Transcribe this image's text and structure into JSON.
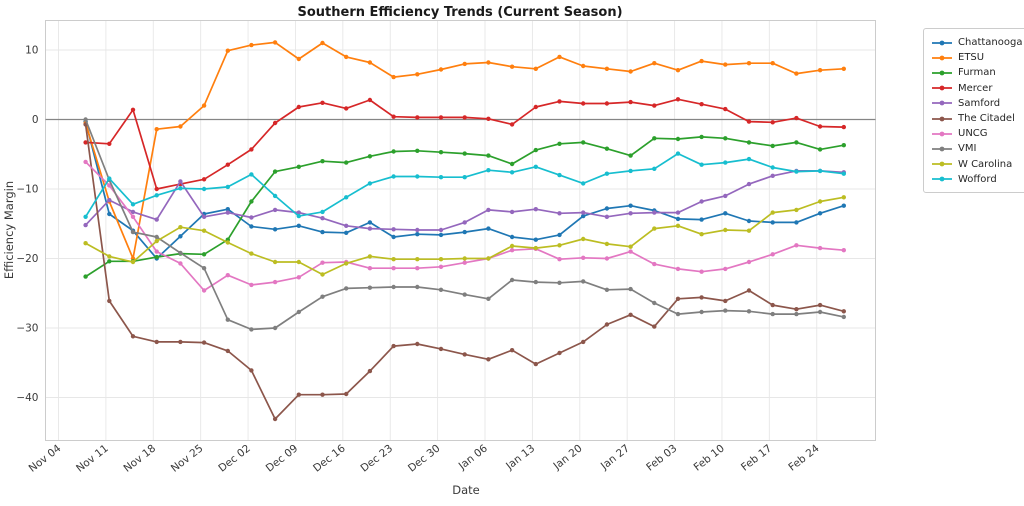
{
  "title": "Southern Efficiency Trends (Current Season)",
  "chart_data": {
    "type": "line",
    "title": "Southern Efficiency Trends (Current Season)",
    "xlabel": "Date",
    "ylabel": "Efficiency Margin",
    "grid": true,
    "zero_line": true,
    "legend_position": "outside-right",
    "ylim": [
      -46,
      14.3
    ],
    "y_ticks": [
      10,
      0,
      -10,
      -20,
      -30,
      -40
    ],
    "y_tick_labels": [
      "10",
      "0",
      "−10",
      "−20",
      "−30",
      "−40"
    ],
    "x_tick_labels": [
      "Nov 04",
      "Nov 11",
      "Nov 18",
      "Nov 25",
      "Dec 02",
      "Dec 09",
      "Dec 16",
      "Dec 23",
      "Dec 30",
      "Jan 06",
      "Jan 13",
      "Jan 20",
      "Jan 27",
      "Feb 03",
      "Feb 10",
      "Feb 17",
      "Feb 24"
    ],
    "x_tick_days": [
      0,
      7,
      14,
      21,
      28,
      35,
      42,
      49,
      56,
      63,
      70,
      77,
      84,
      91,
      98,
      105,
      112
    ],
    "x_start_day": 4,
    "x_interval_days": 3.5,
    "series": [
      {
        "name": "Chattanooga",
        "color": "#1f77b4",
        "values": [
          -0.3,
          -13.6,
          -16.0,
          -20.0,
          -16.8,
          -13.6,
          -12.9,
          -15.4,
          -15.8,
          -15.3,
          -16.2,
          -16.3,
          -14.8,
          -16.9,
          -16.5,
          -16.6,
          -16.2,
          -15.7,
          -16.9,
          -17.3,
          -16.6,
          -13.9,
          -12.8,
          -12.4,
          -13.1,
          -14.3,
          -14.4,
          -13.5,
          -14.6,
          -14.8,
          -14.8,
          -13.5,
          -12.4
        ]
      },
      {
        "name": "ETSU",
        "color": "#ff7f0e",
        "values": [
          -0.5,
          -11.8,
          -20.0,
          -1.4,
          -1.0,
          2.0,
          9.9,
          10.7,
          11.1,
          8.7,
          11.0,
          9.0,
          8.2,
          6.1,
          6.5,
          7.2,
          8.0,
          8.2,
          7.6,
          7.3,
          9.0,
          7.7,
          7.3,
          6.9,
          8.1,
          7.1,
          8.4,
          7.9,
          8.1,
          8.1,
          6.6,
          7.1,
          7.3
        ]
      },
      {
        "name": "Furman",
        "color": "#2ca02c",
        "values": [
          -22.6,
          -20.4,
          -20.4,
          -19.8,
          -19.3,
          -19.4,
          -17.3,
          -11.8,
          -7.5,
          -6.8,
          -6.0,
          -6.2,
          -5.3,
          -4.6,
          -4.5,
          -4.7,
          -4.9,
          -5.2,
          -6.4,
          -4.4,
          -3.5,
          -3.3,
          -4.2,
          -5.2,
          -2.7,
          -2.8,
          -2.5,
          -2.7,
          -3.3,
          -3.8,
          -3.3,
          -4.3,
          -3.7
        ]
      },
      {
        "name": "Mercer",
        "color": "#d62728",
        "values": [
          -3.3,
          -3.5,
          1.4,
          -10.0,
          -9.3,
          -8.6,
          -6.5,
          -4.3,
          -0.5,
          1.8,
          2.4,
          1.6,
          2.8,
          0.4,
          0.3,
          0.3,
          0.3,
          0.1,
          -0.7,
          1.8,
          2.6,
          2.3,
          2.3,
          2.5,
          2.0,
          2.9,
          2.2,
          1.5,
          -0.3,
          -0.4,
          0.2,
          -1.0,
          -1.1
        ]
      },
      {
        "name": "Samford",
        "color": "#9467bd",
        "values": [
          -15.2,
          -11.6,
          -13.3,
          -14.4,
          -8.9,
          -14.0,
          -13.4,
          -14.1,
          -13.0,
          -13.4,
          -14.2,
          -15.3,
          -15.7,
          -15.8,
          -15.9,
          -15.9,
          -14.8,
          -13.0,
          -13.3,
          -12.9,
          -13.5,
          -13.4,
          -14.0,
          -13.5,
          -13.4,
          -13.4,
          -11.8,
          -11.0,
          -9.3,
          -8.1,
          -7.4,
          -7.4,
          -7.6
        ]
      },
      {
        "name": "The Citadel",
        "color": "#8c564b",
        "values": [
          -0.7,
          -26.1,
          -31.2,
          -32.0,
          -32.0,
          -32.1,
          -33.3,
          -36.1,
          -43.1,
          -39.6,
          -39.6,
          -39.5,
          -36.2,
          -32.6,
          -32.3,
          -33.0,
          -33.8,
          -34.5,
          -33.2,
          -35.2,
          -33.6,
          -32.0,
          -29.5,
          -28.1,
          -29.8,
          -25.8,
          -25.6,
          -26.1,
          -24.6,
          -26.7,
          -27.3,
          -26.7,
          -27.6
        ]
      },
      {
        "name": "UNCG",
        "color": "#e377c2",
        "values": [
          -6.1,
          -9.5,
          -14.0,
          -19.0,
          -20.7,
          -24.6,
          -22.4,
          -23.8,
          -23.4,
          -22.7,
          -20.6,
          -20.5,
          -21.4,
          -21.4,
          -21.4,
          -21.2,
          -20.6,
          -20.0,
          -18.8,
          -18.6,
          -20.1,
          -19.9,
          -20.0,
          -19.0,
          -20.8,
          -21.5,
          -21.9,
          -21.5,
          -20.5,
          -19.4,
          -18.1,
          -18.5,
          -18.8
        ]
      },
      {
        "name": "VMI",
        "color": "#7f7f7f",
        "values": [
          0.0,
          -8.7,
          -16.2,
          -16.9,
          -19.2,
          -21.4,
          -28.8,
          -30.2,
          -30.0,
          -27.7,
          -25.5,
          -24.3,
          -24.2,
          -24.1,
          -24.1,
          -24.5,
          -25.2,
          -25.8,
          -23.1,
          -23.4,
          -23.5,
          -23.3,
          -24.5,
          -24.4,
          -26.4,
          -28.0,
          -27.7,
          -27.5,
          -27.6,
          -28.0,
          -28.0,
          -27.7,
          -28.4
        ]
      },
      {
        "name": "W Carolina",
        "color": "#bcbd22",
        "values": [
          -17.8,
          -19.7,
          -20.5,
          -17.5,
          -15.5,
          -16.0,
          -17.7,
          -19.3,
          -20.5,
          -20.5,
          -22.3,
          -20.7,
          -19.7,
          -20.1,
          -20.1,
          -20.1,
          -20.0,
          -20.0,
          -18.2,
          -18.5,
          -18.1,
          -17.2,
          -17.9,
          -18.3,
          -15.7,
          -15.3,
          -16.5,
          -15.9,
          -16.0,
          -13.4,
          -13.0,
          -11.8,
          -11.2
        ]
      },
      {
        "name": "Wofford",
        "color": "#17becf",
        "values": [
          -14.0,
          -8.5,
          -12.2,
          -10.9,
          -9.9,
          -10.0,
          -9.7,
          -7.9,
          -11.0,
          -13.9,
          -13.3,
          -11.2,
          -9.2,
          -8.2,
          -8.2,
          -8.3,
          -8.3,
          -7.3,
          -7.6,
          -6.8,
          -8.0,
          -9.2,
          -7.8,
          -7.4,
          -7.1,
          -4.9,
          -6.5,
          -6.2,
          -5.7,
          -6.9,
          -7.5,
          -7.4,
          -7.8
        ]
      }
    ]
  }
}
